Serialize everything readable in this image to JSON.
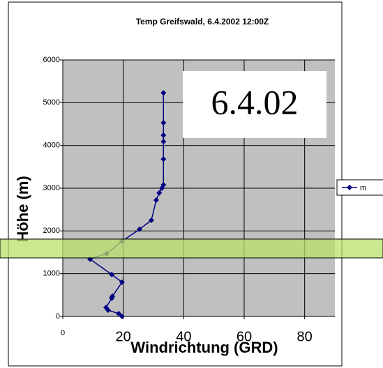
{
  "chart_data": {
    "type": "line",
    "title": "Temp Greifswald, 6.4.2002 12:00Z",
    "x_label": "Windrichtung (GRD)",
    "y_label": "Höhe (m)",
    "annotation": "6.4.02",
    "x": [
      33.3,
      33.3,
      33.3,
      33.3,
      33.3,
      33.3,
      32.8,
      31.9,
      30.9,
      29.3,
      25.4,
      19.6,
      14.5,
      9.0,
      16.2,
      19.6,
      16.4,
      16.2,
      14.3,
      15.0,
      18.5,
      19.6
    ],
    "series": [
      {
        "name": "m",
        "color": "#000080",
        "values": [
          5230,
          4530,
          4240,
          4090,
          3680,
          3080,
          3000,
          2890,
          2720,
          2250,
          2040,
          1760,
          1470,
          1340,
          980,
          800,
          470,
          425,
          210,
          147,
          65,
          0
        ]
      }
    ],
    "xlim": [
      0,
      90
    ],
    "xticks": [
      0,
      20,
      40,
      60,
      80
    ],
    "ylim": [
      0,
      6000
    ],
    "yticks": [
      0,
      1000,
      2000,
      3000,
      4000,
      5000,
      6000
    ],
    "grid": true
  }
}
